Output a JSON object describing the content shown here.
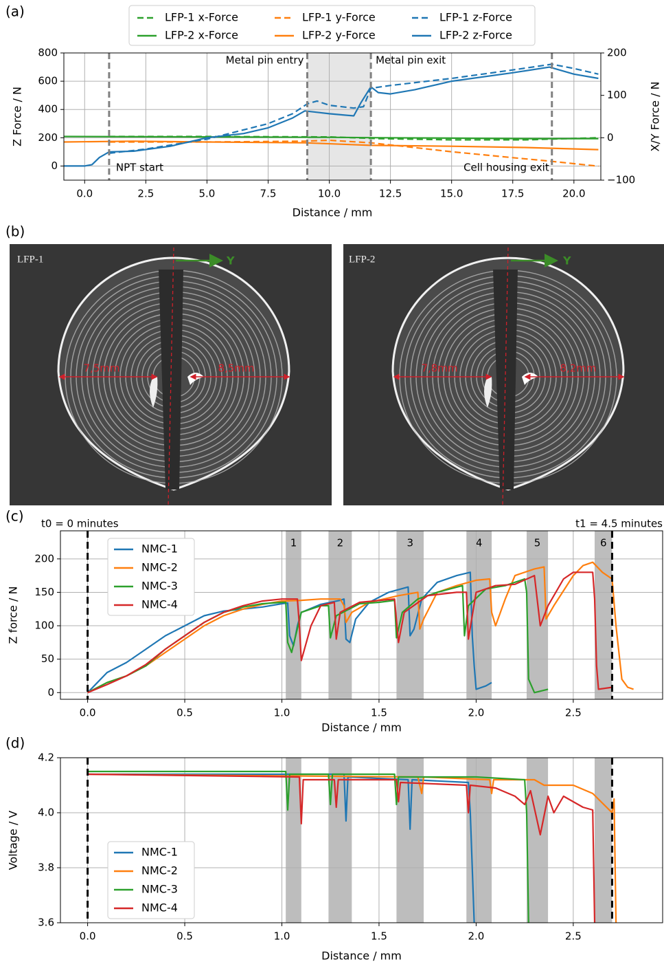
{
  "chart_data": [
    {
      "type": "line",
      "label": "(a)",
      "xlabel": "Distance / mm",
      "ylabel": "Z Force / N",
      "y2label": "X/Y Force / N",
      "xlim": [
        -0.85,
        21.1
      ],
      "ylim": [
        -100,
        800
      ],
      "y2lim": [
        -100,
        200
      ],
      "xticks": [
        {
          "value": 0,
          "label": "0.0"
        },
        2.5,
        {
          "value": 5,
          "label": "5.0"
        },
        7.5,
        {
          "value": 10,
          "label": "10.0"
        },
        12.5,
        {
          "value": 15,
          "label": "15.0"
        },
        17.5,
        {
          "value": 20,
          "label": "20.0"
        }
      ],
      "yticks": [
        0,
        200,
        400,
        600,
        800
      ],
      "y2ticks": [
        {
          "value": -100,
          "label": "−100"
        },
        0,
        100,
        200
      ],
      "grid": true,
      "legend": "top",
      "spans": [
        {
          "x": [
            9.1,
            11.7
          ],
          "color": "#e6e6e6"
        }
      ],
      "vlines": [
        {
          "x": 1,
          "label": "NPT start",
          "color": "#808080"
        },
        {
          "x": 9.1,
          "label": "Metal pin entry",
          "color": "#808080"
        },
        {
          "x": 11.7,
          "label": "Metal pin exit",
          "color": "#808080"
        },
        {
          "x": 19.1,
          "label": "Cell housing exit",
          "color": "#808080"
        }
      ],
      "series": [
        {
          "name": "LFP-1 x-Force",
          "color": "#2ca02c",
          "linestyle": "dashed",
          "axis": "y2",
          "x": [
            1,
            5,
            10,
            12,
            15,
            18,
            21
          ],
          "values": [
            3,
            3,
            2,
            -2,
            -5,
            -5,
            0
          ]
        },
        {
          "name": "LFP-2 x-Force",
          "color": "#2ca02c",
          "linestyle": "solid",
          "axis": "y2",
          "x": [
            -0.85,
            5,
            10,
            12,
            15,
            18,
            21
          ],
          "values": [
            3,
            2,
            1,
            0,
            -1,
            -2,
            -2
          ]
        },
        {
          "name": "LFP-1 y-Force",
          "color": "#ff7f0e",
          "linestyle": "dashed",
          "axis": "y2",
          "x": [
            1,
            5,
            9,
            10,
            11.7,
            13,
            15,
            17.5,
            19,
            21
          ],
          "values": [
            -10,
            -10,
            -8,
            -6,
            -12,
            -20,
            -33,
            -47,
            -55,
            -67
          ]
        },
        {
          "name": "LFP-2 y-Force",
          "color": "#ff7f0e",
          "linestyle": "solid",
          "axis": "y2",
          "x": [
            -0.85,
            2,
            5,
            9,
            11.7,
            15,
            18,
            21
          ],
          "values": [
            -10,
            -8,
            -10,
            -12,
            -18,
            -20,
            -23,
            -28
          ]
        },
        {
          "name": "LFP-1 z-Force",
          "color": "#1f77b4",
          "linestyle": "dashed",
          "x": [
            1,
            2.5,
            5,
            7.5,
            8.5,
            9.1,
            9.5,
            10,
            11,
            11.4,
            11.7,
            12.5,
            15,
            17.5,
            19.1,
            20,
            21
          ],
          "values": [
            90,
            120,
            190,
            300,
            370,
            440,
            460,
            430,
            410,
            420,
            550,
            570,
            620,
            680,
            720,
            690,
            650
          ]
        },
        {
          "name": "LFP-2 z-Force",
          "color": "#1f77b4",
          "linestyle": "solid",
          "x": [
            -0.85,
            0,
            0.3,
            0.6,
            1,
            2,
            3.5,
            5,
            6.5,
            7.5,
            8.5,
            9,
            9.5,
            10,
            11,
            11.3,
            11.7,
            12,
            12.5,
            13.5,
            15,
            17.5,
            19,
            20,
            21
          ],
          "values": [
            0,
            0,
            10,
            60,
            100,
            105,
            140,
            200,
            230,
            270,
            340,
            390,
            380,
            370,
            355,
            450,
            560,
            520,
            510,
            540,
            600,
            660,
            700,
            650,
            620
          ]
        }
      ]
    },
    {
      "type": "line",
      "label": "(c)",
      "xlabel": "Distance / mm",
      "ylabel": "Z force / N",
      "xlim": [
        -0.14,
        2.96
      ],
      "ylim": [
        -10,
        242
      ],
      "xticks": [
        {
          "value": 0,
          "label": "0.0"
        },
        0.5,
        {
          "value": 1,
          "label": "1.0"
        },
        1.5,
        {
          "value": 2,
          "label": "2.0"
        },
        2.5
      ],
      "yticks": [
        0,
        50,
        100,
        150,
        200
      ],
      "grid": true,
      "legend": "upper left",
      "spans": [
        {
          "x": [
            1.02,
            1.1
          ],
          "label": "1",
          "color": "#bdbdbd"
        },
        {
          "x": [
            1.24,
            1.36
          ],
          "label": "2",
          "color": "#bdbdbd"
        },
        {
          "x": [
            1.59,
            1.73
          ],
          "label": "3",
          "color": "#bdbdbd"
        },
        {
          "x": [
            1.95,
            2.08
          ],
          "label": "4",
          "color": "#bdbdbd"
        },
        {
          "x": [
            2.26,
            2.37
          ],
          "label": "5",
          "color": "#bdbdbd"
        },
        {
          "x": [
            2.61,
            2.7
          ],
          "label": "6",
          "color": "#bdbdbd"
        }
      ],
      "vlines": [
        {
          "x": 0,
          "label": "t0 = 0 minutes",
          "color": "#000000"
        },
        {
          "x": 2.7,
          "label": "t1 = 4.5 minutes",
          "color": "#000000"
        }
      ],
      "series": [
        {
          "name": "NMC-1",
          "color": "#1f77b4",
          "linestyle": "solid",
          "x": [
            0,
            0.05,
            0.1,
            0.2,
            0.3,
            0.4,
            0.5,
            0.6,
            0.7,
            0.8,
            0.9,
            1.0,
            1.03,
            1.04,
            1.06,
            1.08,
            1.1,
            1.2,
            1.3,
            1.32,
            1.33,
            1.35,
            1.38,
            1.45,
            1.55,
            1.65,
            1.66,
            1.68,
            1.72,
            1.8,
            1.9,
            1.97,
            1.98,
            1.99,
            2.0,
            2.05,
            2.08
          ],
          "values": [
            0,
            15,
            30,
            45,
            65,
            85,
            100,
            115,
            122,
            125,
            128,
            133,
            134,
            85,
            70,
            100,
            120,
            132,
            138,
            140,
            80,
            75,
            110,
            135,
            150,
            158,
            85,
            95,
            140,
            165,
            175,
            180,
            85,
            40,
            5,
            10,
            15
          ]
        },
        {
          "name": "NMC-2",
          "color": "#ff7f0e",
          "linestyle": "solid",
          "x": [
            0,
            0.1,
            0.2,
            0.3,
            0.4,
            0.5,
            0.6,
            0.7,
            0.8,
            0.9,
            1.0,
            1.1,
            1.2,
            1.3,
            1.32,
            1.33,
            1.36,
            1.45,
            1.6,
            1.7,
            1.71,
            1.73,
            1.8,
            1.9,
            2.0,
            2.07,
            2.08,
            2.1,
            2.15,
            2.2,
            2.3,
            2.35,
            2.36,
            2.4,
            2.5,
            2.55,
            2.6,
            2.65,
            2.7,
            2.72,
            2.75,
            2.78,
            2.81
          ],
          "values": [
            0,
            15,
            25,
            40,
            60,
            80,
            100,
            115,
            125,
            132,
            137,
            138,
            140,
            140,
            130,
            105,
            120,
            135,
            145,
            150,
            95,
            110,
            150,
            160,
            168,
            170,
            120,
            100,
            140,
            175,
            185,
            188,
            110,
            130,
            175,
            190,
            195,
            180,
            170,
            100,
            20,
            8,
            5
          ]
        },
        {
          "name": "NMC-3",
          "color": "#2ca02c",
          "linestyle": "solid",
          "x": [
            0,
            0.1,
            0.2,
            0.3,
            0.4,
            0.5,
            0.6,
            0.7,
            0.8,
            0.9,
            1.0,
            1.02,
            1.03,
            1.05,
            1.1,
            1.2,
            1.24,
            1.25,
            1.28,
            1.4,
            1.5,
            1.58,
            1.59,
            1.62,
            1.7,
            1.8,
            1.93,
            1.94,
            1.96,
            2.05,
            2.15,
            2.25,
            2.26,
            2.27,
            2.3,
            2.37
          ],
          "values": [
            0,
            15,
            25,
            40,
            65,
            85,
            105,
            120,
            128,
            133,
            135,
            135,
            75,
            60,
            120,
            130,
            130,
            82,
            115,
            133,
            135,
            138,
            82,
            120,
            140,
            150,
            160,
            85,
            130,
            155,
            160,
            170,
            150,
            20,
            0,
            5
          ]
        },
        {
          "name": "NMC-4",
          "color": "#d62728",
          "linestyle": "solid",
          "x": [
            0,
            0.1,
            0.2,
            0.3,
            0.4,
            0.5,
            0.6,
            0.7,
            0.8,
            0.9,
            1.0,
            1.08,
            1.09,
            1.1,
            1.15,
            1.2,
            1.27,
            1.28,
            1.3,
            1.4,
            1.58,
            1.6,
            1.63,
            1.75,
            1.9,
            1.95,
            1.96,
            2.0,
            2.1,
            2.2,
            2.3,
            2.33,
            2.37,
            2.45,
            2.5,
            2.6,
            2.61,
            2.62,
            2.63,
            2.7
          ],
          "values": [
            0,
            12,
            25,
            42,
            65,
            85,
            105,
            120,
            130,
            137,
            140,
            140,
            100,
            48,
            100,
            130,
            135,
            80,
            120,
            135,
            140,
            75,
            120,
            145,
            150,
            150,
            80,
            150,
            160,
            162,
            175,
            100,
            130,
            170,
            180,
            180,
            140,
            40,
            5,
            8
          ]
        }
      ]
    },
    {
      "type": "line",
      "label": "(d)",
      "xlabel": "Distance / mm",
      "ylabel": "Voltage / V",
      "xlim": [
        -0.14,
        2.96
      ],
      "ylim": [
        3.6,
        4.2
      ],
      "xticks": [
        {
          "value": 0,
          "label": "0.0"
        },
        0.5,
        {
          "value": 1,
          "label": "1.0"
        },
        1.5,
        {
          "value": 2,
          "label": "2.0"
        },
        2.5
      ],
      "yticks": [
        3.6,
        3.8,
        {
          "value": 4,
          "label": "4.0"
        },
        4.2
      ],
      "grid": true,
      "legend": "lower left",
      "spans": [
        {
          "x": [
            1.02,
            1.1
          ],
          "color": "#bdbdbd"
        },
        {
          "x": [
            1.24,
            1.36
          ],
          "color": "#bdbdbd"
        },
        {
          "x": [
            1.59,
            1.73
          ],
          "color": "#bdbdbd"
        },
        {
          "x": [
            1.95,
            2.08
          ],
          "color": "#bdbdbd"
        },
        {
          "x": [
            2.26,
            2.37
          ],
          "color": "#bdbdbd"
        },
        {
          "x": [
            2.61,
            2.7
          ],
          "color": "#bdbdbd"
        }
      ],
      "vlines": [
        {
          "x": 0,
          "color": "#000000"
        },
        {
          "x": 2.7,
          "color": "#000000"
        }
      ],
      "series": [
        {
          "name": "NMC-1",
          "color": "#1f77b4",
          "linestyle": "solid",
          "x": [
            0,
            1.32,
            1.33,
            1.34,
            1.65,
            1.66,
            1.67,
            1.96,
            1.97,
            1.99
          ],
          "values": [
            4.14,
            4.14,
            3.97,
            4.13,
            4.12,
            3.94,
            4.12,
            4.11,
            4.0,
            3.6
          ]
        },
        {
          "name": "NMC-2",
          "color": "#ff7f0e",
          "linestyle": "solid",
          "x": [
            0,
            1.7,
            1.72,
            1.73,
            2.07,
            2.08,
            2.09,
            2.3,
            2.35,
            2.5,
            2.6,
            2.7,
            2.71,
            2.72
          ],
          "values": [
            4.14,
            4.13,
            4.07,
            4.13,
            4.12,
            4.07,
            4.12,
            4.12,
            4.1,
            4.1,
            4.07,
            4.0,
            4.05,
            3.6
          ]
        },
        {
          "name": "NMC-3",
          "color": "#2ca02c",
          "linestyle": "solid",
          "x": [
            0,
            1.02,
            1.03,
            1.04,
            1.24,
            1.25,
            1.26,
            1.58,
            1.59,
            1.6,
            2.0,
            2.25,
            2.26,
            2.27
          ],
          "values": [
            4.15,
            4.15,
            4.01,
            4.14,
            4.14,
            4.03,
            4.14,
            4.14,
            4.03,
            4.13,
            4.13,
            4.12,
            4.0,
            3.6
          ]
        },
        {
          "name": "NMC-4",
          "color": "#d62728",
          "linestyle": "solid",
          "x": [
            0,
            1.09,
            1.1,
            1.11,
            1.27,
            1.28,
            1.29,
            1.59,
            1.6,
            1.61,
            1.95,
            1.96,
            1.97,
            2.1,
            2.2,
            2.25,
            2.28,
            2.33,
            2.37,
            2.4,
            2.45,
            2.55,
            2.6,
            2.61
          ],
          "values": [
            4.14,
            4.13,
            3.96,
            4.12,
            4.12,
            4.02,
            4.12,
            4.12,
            4.04,
            4.11,
            4.1,
            4.0,
            4.1,
            4.09,
            4.06,
            4.03,
            4.08,
            3.92,
            4.06,
            4.0,
            4.06,
            4.02,
            4.01,
            3.6
          ]
        }
      ]
    }
  ],
  "image_panel": {
    "label": "(b)",
    "images": [
      {
        "name": "LFP-1",
        "axis": "Y",
        "left": "7,5mm",
        "right": "8,5mm"
      },
      {
        "name": "LFP-2",
        "axis": "Y",
        "left": "7,8mm",
        "right": "8,2mm"
      }
    ]
  }
}
